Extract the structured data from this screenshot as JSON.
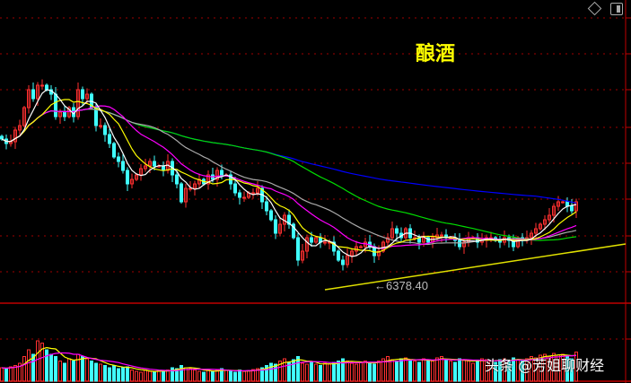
{
  "title": "酿酒",
  "low_label": "←6378.40",
  "watermark": "头条 @芳姐聊财经",
  "icons": [
    "diamond-icon",
    "panel-toggle-icon"
  ],
  "colors": {
    "up": "#ff3030",
    "down": "#40ffff",
    "grid": "#a00000",
    "ma5": "#ffffff",
    "ma10": "#ffff00",
    "ma20": "#ff00ff",
    "ma30": "#aaaaaa",
    "ma60": "#00dd00",
    "ma120": "#0000ff",
    "trendline": "#e0e000"
  },
  "chart_data": {
    "type": "candlestick",
    "title": "酿酒",
    "annotation": {
      "label": "6378.40",
      "value": 6378.4
    },
    "close": [
      9280,
      9180,
      9220,
      9480,
      9580,
      9980,
      10380,
      10180,
      10480,
      10480,
      10380,
      10280,
      9780,
      9880,
      9780,
      9980,
      9780,
      10380,
      10180,
      10280,
      9980,
      9580,
      9580,
      9380,
      9180,
      8880,
      8780,
      8580,
      8280,
      8380,
      8480,
      8620,
      8680,
      8780,
      8680,
      8680,
      8580,
      8780,
      8480,
      8280,
      7880,
      8180,
      8180,
      8280,
      8380,
      8280,
      8480,
      8380,
      8580,
      8480,
      8480,
      8280,
      8080,
      7980,
      7980,
      8080,
      8080,
      8180,
      7880,
      7680,
      7480,
      7180,
      7380,
      7580,
      7380,
      7080,
      6580,
      6780,
      7080,
      6980,
      7080,
      6980,
      6980,
      6980,
      6780,
      6580,
      6480,
      6680,
      6780,
      6880,
      6880,
      6980,
      6880,
      6680,
      6780,
      6980,
      7080,
      7280,
      7180,
      7080,
      7280,
      7080,
      7080,
      6980,
      7080,
      6980,
      7080,
      7140,
      7140,
      7080,
      7080,
      7020,
      6880,
      6980,
      7080,
      7080,
      6980,
      7020,
      7080,
      7080,
      7020,
      6980,
      7080,
      7020,
      6880,
      7080,
      7020,
      7080,
      7180,
      7280,
      7380,
      7480,
      7580,
      7780,
      7880,
      7880,
      7780,
      7680,
      7880
    ],
    "volume": [
      30,
      28,
      32,
      35,
      40,
      55,
      70,
      60,
      90,
      85,
      70,
      60,
      55,
      45,
      40,
      50,
      45,
      60,
      55,
      50,
      45,
      40,
      38,
      35,
      30,
      35,
      28,
      30,
      32,
      25,
      22,
      20,
      25,
      22,
      20,
      24,
      22,
      25,
      30,
      28,
      35,
      30,
      28,
      25,
      22,
      20,
      25,
      22,
      25,
      28,
      24,
      22,
      20,
      25,
      22,
      24,
      26,
      28,
      30,
      35,
      40,
      38,
      45,
      50,
      42,
      48,
      55,
      40,
      38,
      42,
      38,
      35,
      40,
      38,
      42,
      45,
      50,
      45,
      40,
      38,
      42,
      45,
      40,
      38,
      45,
      50,
      55,
      48,
      45,
      50,
      52,
      48,
      45,
      42,
      50,
      48,
      45,
      52,
      55,
      48,
      45,
      42,
      50,
      48,
      45,
      40,
      45,
      50,
      48,
      45,
      42,
      48,
      50,
      45,
      52,
      48,
      45,
      50,
      55,
      52,
      58,
      60,
      55,
      62,
      58,
      60,
      55,
      50,
      65
    ]
  }
}
